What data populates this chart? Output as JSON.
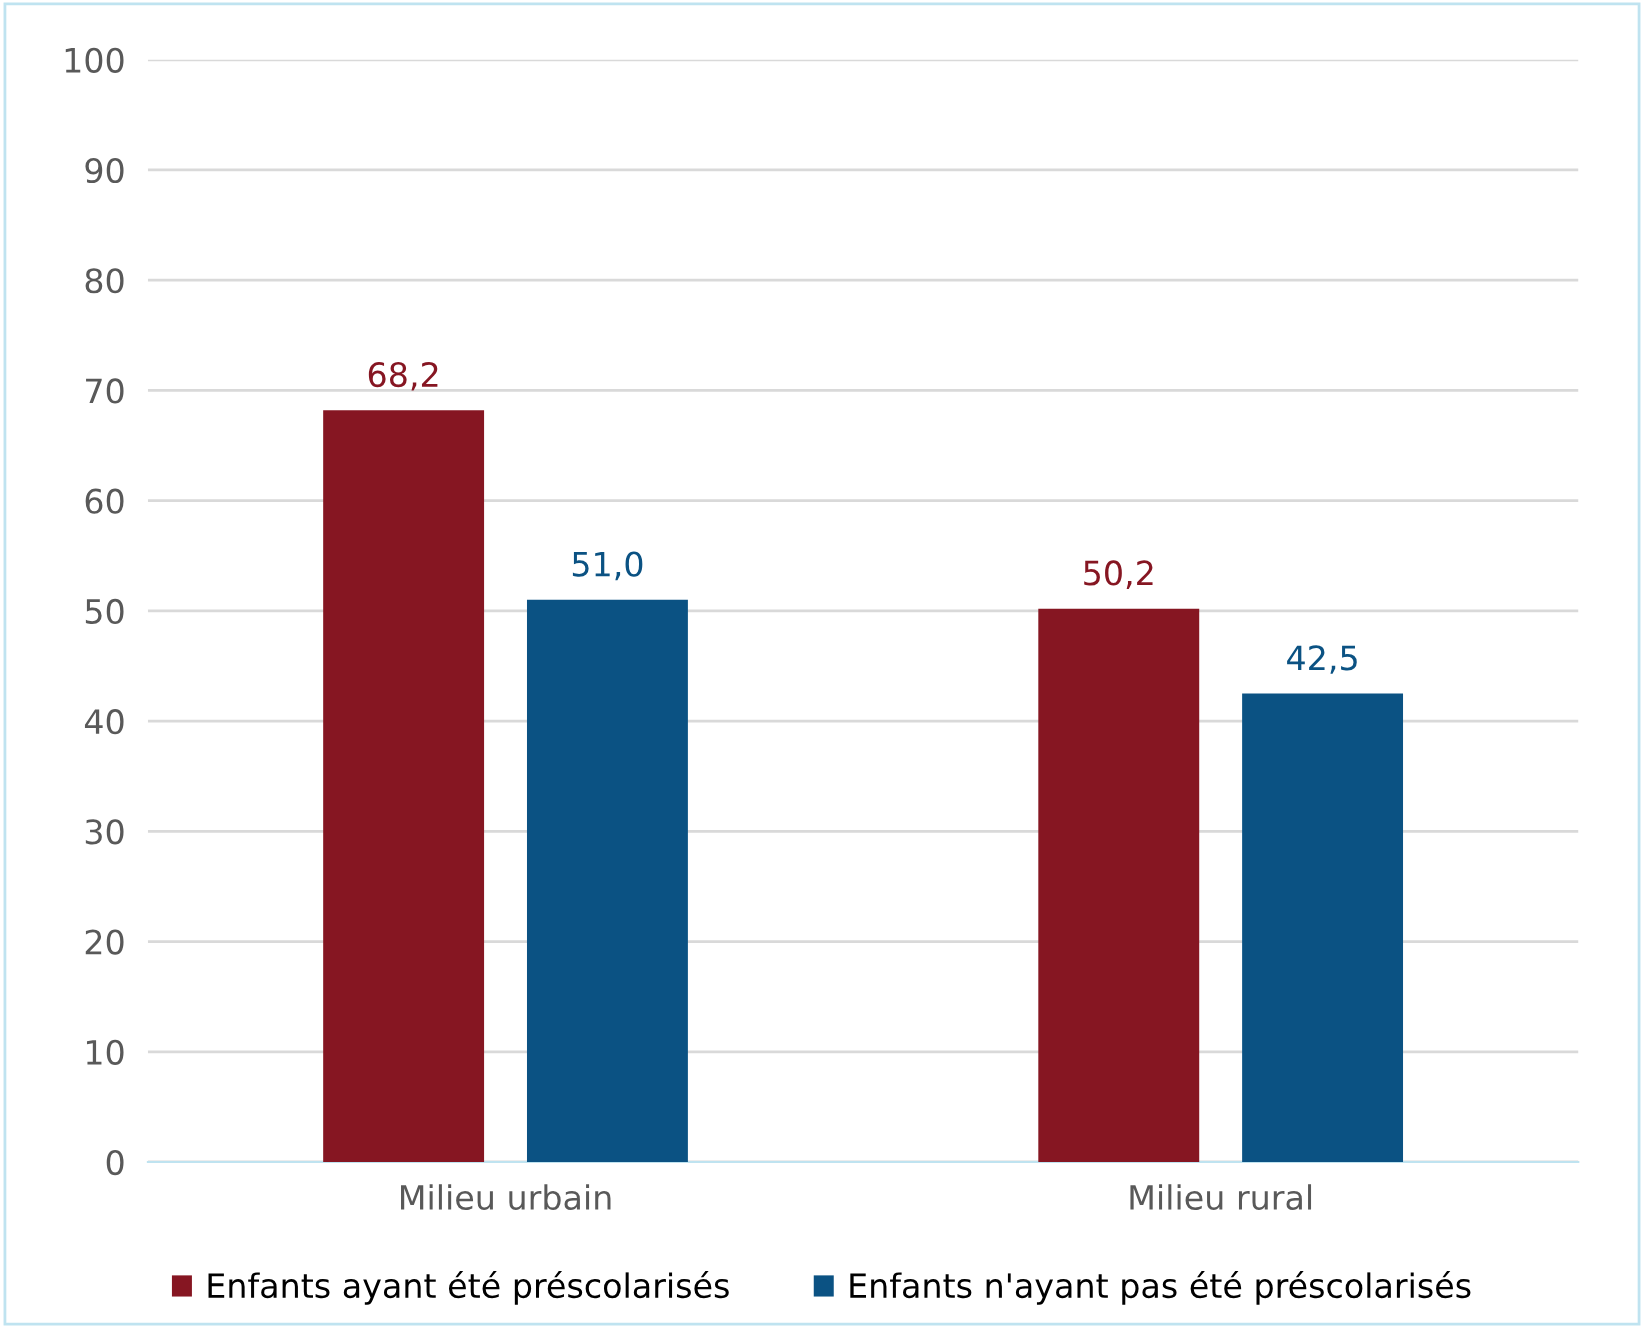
{
  "chart_data": {
    "type": "bar",
    "categories": [
      "Milieu urbain",
      "Milieu rural"
    ],
    "series": [
      {
        "name": "Enfants ayant été préscolarisés",
        "color": "#861622",
        "values": [
          68.2,
          50.2
        ],
        "value_labels": [
          "68,2",
          "50,2"
        ]
      },
      {
        "name": "Enfants n'ayant pas été préscolarisés",
        "color": "#0b5283",
        "values": [
          51.0,
          42.5
        ],
        "value_labels": [
          "51,0",
          "42,5"
        ]
      }
    ],
    "ylim": [
      0,
      100
    ],
    "yticks": [
      0,
      10,
      20,
      30,
      40,
      50,
      60,
      70,
      80,
      90,
      100
    ],
    "grid": "y",
    "legend": "bottom"
  }
}
